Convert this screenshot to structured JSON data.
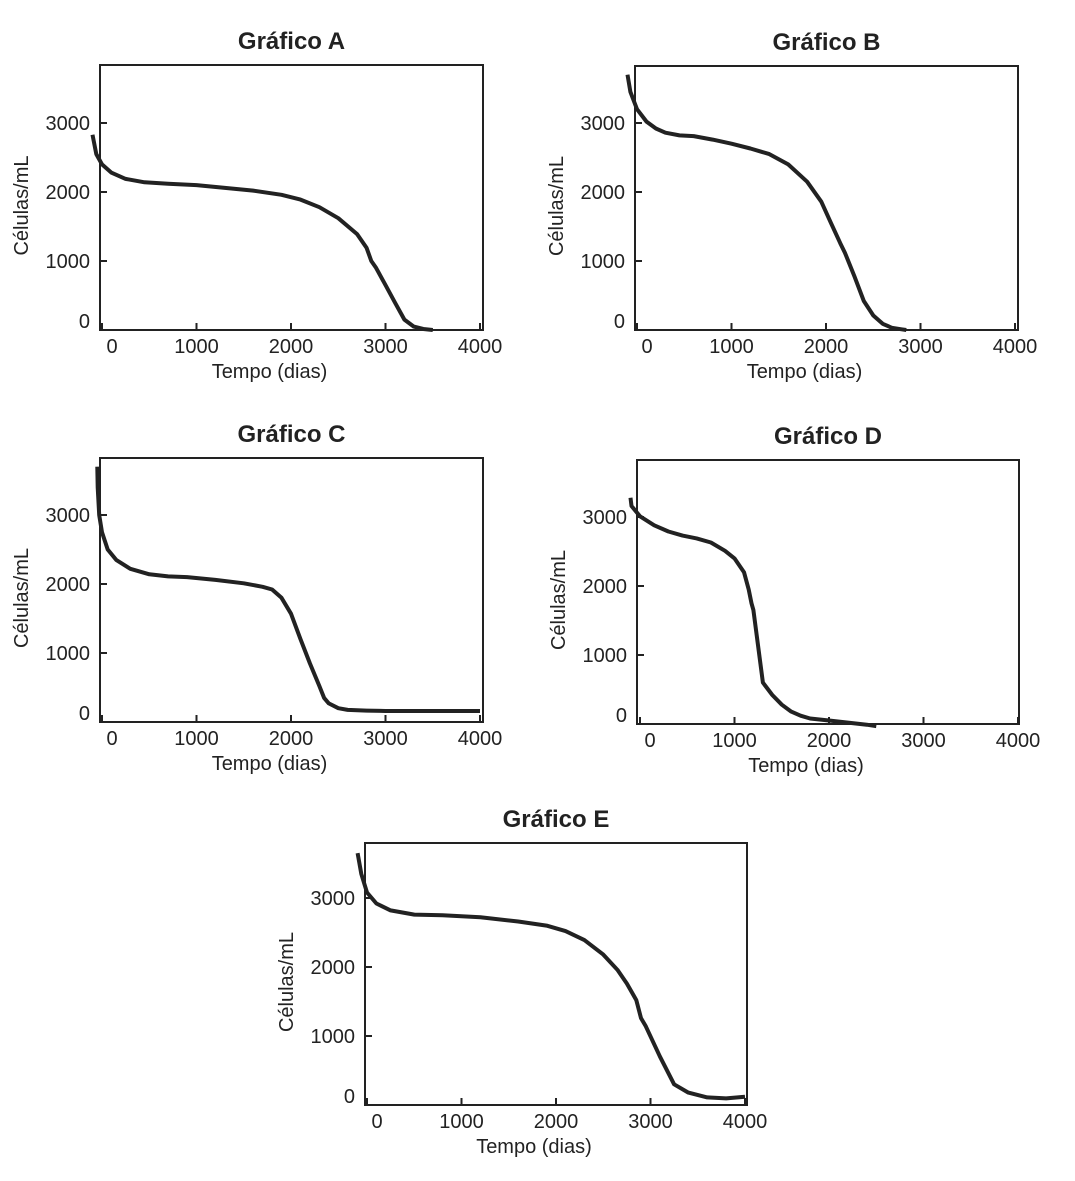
{
  "chart_data": [
    {
      "type": "line",
      "title": "Gráfico A",
      "xlabel": "Tempo (dias)",
      "ylabel": "Células/mL",
      "xlim": [
        -100,
        4000
      ],
      "ylim": [
        -60,
        3700
      ],
      "xticks": [
        0,
        1000,
        2000,
        3000,
        4000
      ],
      "yticks": [
        0,
        1000,
        2000,
        3000
      ],
      "grid": false,
      "series": [
        {
          "x": [
            -100,
            -60,
            0,
            100,
            250,
            450,
            700,
            1000,
            1300,
            1600,
            1900,
            2100,
            2300,
            2500,
            2700,
            2800,
            2850,
            2900,
            3000,
            3100,
            3200,
            3300,
            3400,
            3500
          ],
          "y": [
            2830,
            2550,
            2400,
            2280,
            2190,
            2140,
            2120,
            2100,
            2060,
            2020,
            1960,
            1890,
            1780,
            1620,
            1390,
            1190,
            1000,
            900,
            650,
            400,
            150,
            50,
            15,
            0
          ]
        }
      ]
    },
    {
      "type": "line",
      "title": "Gráfico B",
      "xlabel": "Tempo (dias)",
      "ylabel": "Células/mL",
      "xlim": [
        -100,
        4000
      ],
      "ylim": [
        -60,
        3700
      ],
      "xticks": [
        0,
        1000,
        2000,
        3000,
        4000
      ],
      "yticks": [
        0,
        1000,
        2000,
        3000
      ],
      "grid": false,
      "series": [
        {
          "x": [
            -100,
            -70,
            0,
            100,
            200,
            300,
            450,
            600,
            800,
            1000,
            1200,
            1400,
            1600,
            1800,
            1950,
            2050,
            2150,
            2200,
            2300,
            2400,
            2500,
            2600,
            2700,
            2800,
            2850
          ],
          "y": [
            3700,
            3450,
            3200,
            3020,
            2920,
            2860,
            2820,
            2810,
            2760,
            2700,
            2630,
            2550,
            2400,
            2150,
            1860,
            1560,
            1260,
            1120,
            780,
            420,
            210,
            90,
            30,
            10,
            0
          ]
        }
      ]
    },
    {
      "type": "line",
      "title": "Gráfico C",
      "xlabel": "Tempo (dias)",
      "ylabel": "Células/mL",
      "xlim": [
        -100,
        4000
      ],
      "ylim": [
        -60,
        3700
      ],
      "xticks": [
        0,
        1000,
        2000,
        3000,
        4000
      ],
      "yticks": [
        0,
        1000,
        2000,
        3000
      ],
      "grid": false,
      "series": [
        {
          "x": [
            -50,
            -45,
            -30,
            0,
            60,
            150,
            300,
            500,
            700,
            900,
            1200,
            1500,
            1700,
            1800,
            1900,
            2000,
            2100,
            2200,
            2300,
            2350,
            2400,
            2500,
            2600,
            2800,
            3000,
            3500,
            4000
          ],
          "y": [
            3700,
            3400,
            3000,
            2750,
            2500,
            2350,
            2220,
            2140,
            2110,
            2100,
            2060,
            2010,
            1960,
            1920,
            1800,
            1570,
            1200,
            850,
            520,
            350,
            270,
            200,
            175,
            165,
            160,
            160,
            160
          ]
        }
      ]
    },
    {
      "type": "line",
      "title": "Gráfico D",
      "xlabel": "Tempo (dias)",
      "ylabel": "Células/mL",
      "xlim": [
        -100,
        4000
      ],
      "ylim": [
        -60,
        3700
      ],
      "xticks": [
        0,
        1000,
        2000,
        3000,
        4000
      ],
      "yticks": [
        0,
        1000,
        2000,
        3000
      ],
      "grid": false,
      "series": [
        {
          "x": [
            -100,
            -90,
            0,
            150,
            300,
            450,
            600,
            750,
            900,
            1000,
            1100,
            1150,
            1180,
            1200,
            1300,
            1400,
            1500,
            1600,
            1700,
            1800,
            2000,
            2200,
            2400,
            2500
          ],
          "y": [
            3280,
            3160,
            3010,
            2880,
            2790,
            2730,
            2690,
            2630,
            2510,
            2400,
            2200,
            1950,
            1750,
            1650,
            600,
            420,
            280,
            180,
            120,
            80,
            50,
            20,
            -10,
            -30
          ]
        }
      ]
    },
    {
      "type": "line",
      "title": "Gráfico E",
      "xlabel": "Tempo (dias)",
      "ylabel": "Células/mL",
      "xlim": [
        -100,
        4000
      ],
      "ylim": [
        -60,
        3700
      ],
      "xticks": [
        0,
        1000,
        2000,
        3000,
        4000
      ],
      "yticks": [
        0,
        1000,
        2000,
        3000
      ],
      "grid": false,
      "series": [
        {
          "x": [
            -100,
            -60,
            0,
            100,
            250,
            500,
            800,
            1200,
            1600,
            1900,
            2100,
            2300,
            2500,
            2650,
            2750,
            2850,
            2900,
            2950,
            3100,
            3250,
            3400,
            3600,
            3800,
            4000
          ],
          "y": [
            3650,
            3350,
            3080,
            2920,
            2820,
            2760,
            2750,
            2720,
            2660,
            2600,
            2520,
            2390,
            2180,
            1960,
            1760,
            1520,
            1260,
            1140,
            700,
            300,
            180,
            110,
            95,
            120
          ]
        }
      ]
    }
  ]
}
